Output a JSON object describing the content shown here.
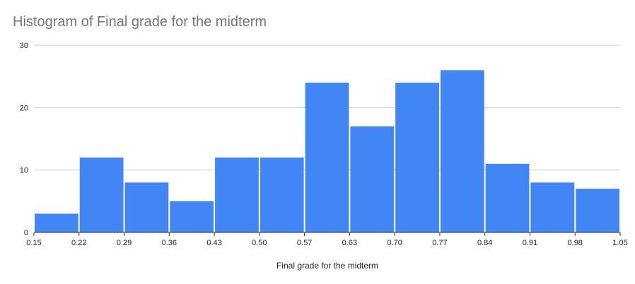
{
  "chart_data": {
    "type": "bar",
    "title": "Histogram of Final grade for the midterm",
    "xlabel": "Final grade for the midterm",
    "ylabel": "",
    "bin_edges": [
      0.15,
      0.22,
      0.29,
      0.36,
      0.43,
      0.5,
      0.57,
      0.63,
      0.7,
      0.77,
      0.84,
      0.91,
      0.98,
      1.05
    ],
    "x_tick_labels": [
      "0.15",
      "0.22",
      "0.29",
      "0.36",
      "0.43",
      "0.50",
      "0.57",
      "0.63",
      "0.70",
      "0.77",
      "0.84",
      "0.91",
      "0.98",
      "1.05"
    ],
    "values": [
      3,
      12,
      8,
      5,
      12,
      12,
      24,
      17,
      24,
      26,
      11,
      8,
      7
    ],
    "ylim": [
      0,
      30
    ],
    "y_ticks": [
      0,
      10,
      20,
      30
    ],
    "grid": true,
    "legend": "none",
    "colors": {
      "bar": "#4285f4",
      "grid": "#cccccc",
      "axis": "#333333",
      "title": "#757575"
    }
  }
}
